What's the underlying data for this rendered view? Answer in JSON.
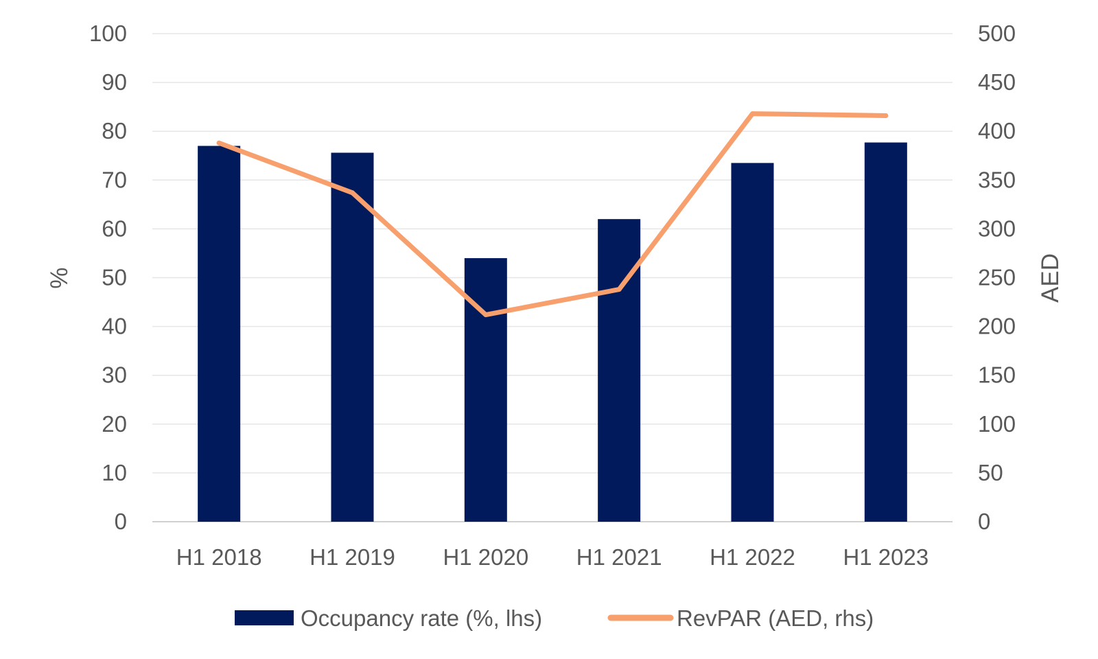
{
  "chart_data": {
    "type": "bar",
    "categories": [
      "H1 2018",
      "H1 2019",
      "H1 2020",
      "H1 2021",
      "H1 2022",
      "H1 2023"
    ],
    "series": [
      {
        "name": "Occupancy rate (%, lhs)",
        "type": "bar",
        "axis": "left",
        "color": "#001a5c",
        "values": [
          77,
          75.6,
          54,
          62,
          73.5,
          77.7
        ]
      },
      {
        "name": "RevPAR (AED, rhs)",
        "type": "line",
        "axis": "right",
        "color": "#f7a06d",
        "values": [
          388,
          337,
          212,
          238,
          418,
          416
        ]
      }
    ],
    "title": "",
    "xlabel": "",
    "ylabel": "%",
    "ylabel_right": "AED",
    "ylim": [
      0,
      100
    ],
    "ylim_right": [
      0,
      500
    ],
    "yticks": [
      "0",
      "10",
      "20",
      "30",
      "40",
      "50",
      "60",
      "70",
      "80",
      "90",
      "100"
    ],
    "yticks_right": [
      "0",
      "50",
      "100",
      "150",
      "200",
      "250",
      "300",
      "350",
      "400",
      "450",
      "500"
    ],
    "grid": true,
    "legend_position": "bottom"
  }
}
